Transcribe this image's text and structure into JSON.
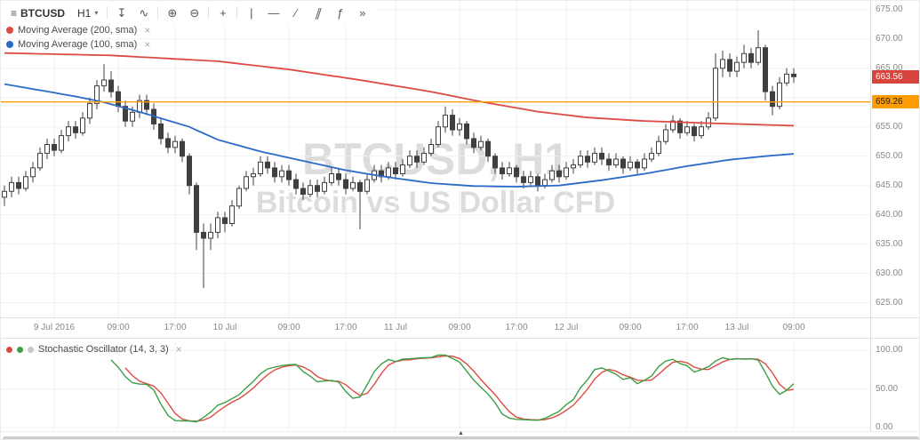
{
  "toolbar": {
    "symbol_icon": "≡",
    "symbol": "BTCUSD",
    "interval": "H1",
    "caret": "▾",
    "tools": [
      {
        "name": "compare",
        "glyph": "↧"
      },
      {
        "name": "indicators",
        "glyph": "∿"
      },
      {
        "name": "zoom-in",
        "glyph": "⊕"
      },
      {
        "name": "zoom-out",
        "glyph": "⊖"
      },
      {
        "name": "crosshair",
        "glyph": "+"
      },
      {
        "name": "vertical-line-tool",
        "glyph": "|"
      },
      {
        "name": "horizontal-line-tool",
        "glyph": "—"
      },
      {
        "name": "trend-line-tool",
        "glyph": "∕"
      },
      {
        "name": "pitchfork-tool",
        "glyph": "∥"
      },
      {
        "name": "function",
        "glyph": "ƒ"
      },
      {
        "name": "more-tools",
        "glyph": "»"
      }
    ]
  },
  "legends": {
    "close_glyph": "×",
    "ma200": {
      "label": "Moving Average (200, sma)",
      "color": "#dd4b43"
    },
    "ma100": {
      "label": "Moving Average (100, sma)",
      "color": "#2a6bc8"
    },
    "stoch": {
      "label": "Stochastic Oscillator (14, 3, 3)",
      "colors": [
        "#dd4b43",
        "#3c9e46",
        "#c9c9c9"
      ]
    }
  },
  "watermark": {
    "line1": "BTCUSD, H1",
    "line2": "Bitcoin vs US Dollar CFD"
  },
  "price_scale": {
    "grid": [
      675,
      670,
      665,
      660,
      655,
      650,
      645,
      640,
      635,
      630,
      625
    ],
    "labels": [
      {
        "v": 675,
        "label": "675.00"
      },
      {
        "v": 670,
        "label": "670.00"
      },
      {
        "v": 665,
        "label": "665.00"
      },
      {
        "v": 655,
        "label": "655.00"
      },
      {
        "v": 650,
        "label": "650.00"
      },
      {
        "v": 645,
        "label": "645.00"
      },
      {
        "v": 640,
        "label": "640.00"
      },
      {
        "v": 635,
        "label": "635.00"
      },
      {
        "v": 630,
        "label": "630.00"
      },
      {
        "v": 625,
        "label": "625.00"
      }
    ],
    "last_price": "663.56",
    "last_price_color": "#d6443c",
    "line_price": "659.26",
    "line_color": "#ff9d00"
  },
  "stoch_scale": [
    {
      "v": 100,
      "label": "100.00"
    },
    {
      "v": 50,
      "label": "50.00"
    },
    {
      "v": 0,
      "label": "0.00"
    }
  ],
  "time_axis": [
    {
      "i": 7,
      "label": "9 Jul 2016"
    },
    {
      "i": 16,
      "label": "09:00"
    },
    {
      "i": 24,
      "label": "17:00"
    },
    {
      "i": 31,
      "label": "10 Jul"
    },
    {
      "i": 40,
      "label": "09:00"
    },
    {
      "i": 48,
      "label": "17:00"
    },
    {
      "i": 55,
      "label": "11 Jul"
    },
    {
      "i": 64,
      "label": "09:00"
    },
    {
      "i": 72,
      "label": "17:00"
    },
    {
      "i": 79,
      "label": "12 Jul"
    },
    {
      "i": 88,
      "label": "09:00"
    },
    {
      "i": 96,
      "label": "17:00"
    },
    {
      "i": 103,
      "label": "13 Jul"
    },
    {
      "i": 111,
      "label": "09:00"
    }
  ],
  "bottom_bar": {
    "collapse_glyph": "▲"
  },
  "chart_data": {
    "type": "candlestick",
    "symbol": "BTCUSD",
    "interval": "H1",
    "title": "Bitcoin vs US Dollar CFD",
    "ylim": [
      622.5,
      676.5
    ],
    "last": 663.56,
    "hline": {
      "value": 659.26,
      "color": "#ff9d00"
    },
    "candles": [
      [
        643.0,
        645.0,
        641.5,
        644.0
      ],
      [
        644.0,
        646.5,
        643.0,
        645.5
      ],
      [
        645.5,
        646.5,
        643.5,
        644.5
      ],
      [
        644.5,
        647.5,
        644.0,
        646.5
      ],
      [
        646.5,
        649.0,
        645.5,
        648.0
      ],
      [
        648.0,
        651.5,
        647.5,
        650.5
      ],
      [
        650.5,
        653.0,
        649.5,
        652.0
      ],
      [
        652.0,
        653.0,
        650.0,
        651.0
      ],
      [
        651.0,
        654.5,
        650.5,
        653.5
      ],
      [
        653.5,
        656.0,
        652.5,
        655.0
      ],
      [
        655.0,
        656.0,
        653.0,
        654.0
      ],
      [
        654.0,
        657.5,
        653.5,
        656.5
      ],
      [
        656.5,
        660.0,
        655.5,
        659.0
      ],
      [
        659.0,
        663.0,
        658.0,
        662.0
      ],
      [
        662.0,
        665.7,
        661.0,
        663.0
      ],
      [
        663.0,
        664.5,
        660.0,
        661.0
      ],
      [
        661.0,
        662.0,
        657.5,
        658.5
      ],
      [
        658.5,
        659.5,
        655.0,
        656.0
      ],
      [
        656.0,
        658.5,
        655.0,
        657.5
      ],
      [
        657.5,
        660.5,
        656.5,
        659.5
      ],
      [
        659.5,
        660.5,
        657.0,
        658.0
      ],
      [
        658.0,
        659.0,
        654.5,
        655.5
      ],
      [
        655.5,
        656.5,
        652.0,
        653.0
      ],
      [
        653.0,
        654.0,
        650.5,
        651.5
      ],
      [
        651.5,
        653.5,
        650.5,
        652.5
      ],
      [
        652.5,
        653.0,
        649.0,
        650.0
      ],
      [
        650.0,
        650.5,
        643.5,
        645.0
      ],
      [
        645.0,
        645.5,
        634.0,
        637.0
      ],
      [
        637.0,
        638.5,
        627.5,
        636.0
      ],
      [
        636.0,
        638.5,
        634.0,
        637.0
      ],
      [
        637.0,
        640.5,
        636.0,
        639.5
      ],
      [
        639.5,
        640.5,
        637.0,
        638.5
      ],
      [
        638.5,
        642.5,
        638.0,
        641.5
      ],
      [
        641.5,
        645.0,
        641.0,
        644.5
      ],
      [
        644.5,
        647.5,
        644.0,
        646.5
      ],
      [
        646.5,
        648.0,
        645.0,
        647.0
      ],
      [
        647.0,
        650.0,
        646.5,
        649.0
      ],
      [
        649.0,
        650.0,
        647.0,
        648.0
      ],
      [
        648.0,
        649.0,
        645.5,
        646.5
      ],
      [
        646.5,
        648.5,
        645.5,
        647.5
      ],
      [
        647.5,
        648.5,
        645.0,
        646.0
      ],
      [
        646.0,
        647.0,
        643.5,
        644.5
      ],
      [
        644.5,
        645.5,
        642.5,
        643.5
      ],
      [
        643.5,
        646.0,
        643.0,
        645.0
      ],
      [
        645.0,
        646.0,
        643.0,
        644.0
      ],
      [
        644.0,
        646.5,
        643.5,
        645.5
      ],
      [
        645.5,
        648.0,
        645.0,
        647.0
      ],
      [
        647.0,
        648.0,
        645.0,
        646.0
      ],
      [
        646.0,
        647.0,
        643.5,
        644.5
      ],
      [
        644.5,
        646.5,
        644.0,
        645.5
      ],
      [
        645.5,
        646.0,
        637.5,
        644.0
      ],
      [
        644.0,
        647.0,
        643.5,
        646.0
      ],
      [
        646.0,
        648.5,
        645.5,
        647.5
      ],
      [
        647.5,
        648.5,
        645.5,
        646.5
      ],
      [
        646.5,
        649.0,
        646.0,
        648.0
      ],
      [
        648.0,
        649.0,
        646.0,
        647.0
      ],
      [
        647.0,
        649.5,
        646.5,
        648.5
      ],
      [
        648.5,
        651.0,
        648.0,
        650.0
      ],
      [
        650.0,
        651.0,
        648.0,
        649.0
      ],
      [
        649.0,
        651.5,
        648.5,
        650.5
      ],
      [
        650.5,
        653.0,
        650.0,
        652.0
      ],
      [
        652.0,
        656.0,
        651.5,
        655.0
      ],
      [
        655.0,
        658.5,
        654.0,
        657.0
      ],
      [
        657.0,
        658.0,
        653.5,
        654.5
      ],
      [
        654.5,
        656.5,
        653.5,
        655.5
      ],
      [
        655.5,
        656.0,
        652.0,
        653.0
      ],
      [
        653.0,
        654.0,
        650.5,
        651.5
      ],
      [
        651.5,
        653.5,
        651.0,
        652.5
      ],
      [
        652.5,
        653.0,
        649.0,
        650.0
      ],
      [
        650.0,
        650.5,
        647.0,
        648.0
      ],
      [
        648.0,
        649.0,
        646.0,
        647.0
      ],
      [
        647.0,
        649.0,
        646.5,
        648.0
      ],
      [
        648.0,
        648.5,
        645.5,
        646.5
      ],
      [
        646.5,
        647.5,
        644.5,
        645.5
      ],
      [
        645.5,
        647.5,
        645.0,
        646.5
      ],
      [
        646.5,
        647.0,
        644.0,
        645.0
      ],
      [
        645.0,
        647.0,
        644.5,
        646.0
      ],
      [
        646.0,
        648.5,
        645.5,
        647.5
      ],
      [
        647.5,
        648.5,
        645.5,
        646.5
      ],
      [
        646.5,
        649.0,
        646.0,
        648.0
      ],
      [
        648.0,
        649.5,
        647.0,
        648.5
      ],
      [
        648.5,
        651.0,
        648.0,
        650.0
      ],
      [
        650.0,
        651.0,
        648.0,
        649.0
      ],
      [
        649.0,
        651.5,
        648.5,
        650.5
      ],
      [
        650.5,
        651.5,
        648.5,
        649.5
      ],
      [
        649.5,
        650.5,
        647.5,
        648.5
      ],
      [
        648.5,
        650.5,
        648.0,
        649.5
      ],
      [
        649.5,
        650.0,
        647.0,
        648.0
      ],
      [
        648.0,
        650.0,
        647.5,
        649.0
      ],
      [
        649.0,
        649.5,
        647.0,
        648.0
      ],
      [
        648.0,
        650.5,
        647.5,
        649.5
      ],
      [
        649.5,
        651.5,
        649.0,
        650.5
      ],
      [
        650.5,
        653.5,
        650.0,
        652.5
      ],
      [
        652.5,
        655.5,
        652.0,
        654.5
      ],
      [
        654.5,
        657.0,
        654.0,
        656.0
      ],
      [
        656.0,
        656.5,
        653.0,
        654.0
      ],
      [
        654.0,
        656.0,
        653.5,
        655.0
      ],
      [
        655.0,
        655.5,
        652.5,
        653.5
      ],
      [
        653.5,
        656.0,
        653.0,
        655.0
      ],
      [
        655.0,
        657.5,
        654.5,
        656.5
      ],
      [
        656.5,
        667.5,
        656.0,
        665.0
      ],
      [
        665.0,
        668.0,
        663.5,
        666.5
      ],
      [
        666.5,
        667.5,
        663.5,
        664.5
      ],
      [
        664.5,
        667.0,
        663.5,
        666.0
      ],
      [
        666.0,
        669.0,
        665.0,
        667.5
      ],
      [
        667.5,
        668.5,
        665.0,
        666.0
      ],
      [
        666.0,
        671.5,
        665.5,
        668.5
      ],
      [
        668.5,
        669.0,
        659.5,
        661.0
      ],
      [
        661.0,
        662.0,
        657.0,
        658.5
      ],
      [
        658.5,
        663.5,
        658.0,
        662.5
      ],
      [
        662.5,
        665.0,
        662.0,
        664.0
      ],
      [
        664.0,
        665.0,
        662.5,
        663.56
      ]
    ],
    "overlays": [
      {
        "name": "MA(200,sma)",
        "color": "#dd4b43",
        "points": [
          [
            0,
            667.6
          ],
          [
            15,
            667.2
          ],
          [
            30,
            666.2
          ],
          [
            40,
            664.8
          ],
          [
            50,
            663.0
          ],
          [
            60,
            661.0
          ],
          [
            67,
            659.3
          ],
          [
            75,
            657.6
          ],
          [
            82,
            656.6
          ],
          [
            90,
            656.0
          ],
          [
            100,
            655.6
          ],
          [
            111,
            655.2
          ]
        ]
      },
      {
        "name": "MA(100,sma)",
        "color": "#2a6bc8",
        "points": [
          [
            0,
            662.3
          ],
          [
            10,
            660.2
          ],
          [
            14,
            659.2
          ],
          [
            20,
            657.2
          ],
          [
            26,
            655.0
          ],
          [
            30,
            652.8
          ],
          [
            36,
            650.8
          ],
          [
            42,
            649.2
          ],
          [
            48,
            647.6
          ],
          [
            54,
            646.4
          ],
          [
            60,
            645.4
          ],
          [
            66,
            644.9
          ],
          [
            72,
            644.8
          ],
          [
            78,
            645.0
          ],
          [
            84,
            645.9
          ],
          [
            90,
            647.0
          ],
          [
            96,
            648.3
          ],
          [
            102,
            649.4
          ],
          [
            107,
            650.0
          ],
          [
            111,
            650.4
          ]
        ]
      }
    ],
    "stochastic": {
      "params": [
        14,
        3,
        3
      ],
      "k_color": "#3c9e46",
      "d_color": "#dd4b43",
      "ylim": [
        0,
        100
      ],
      "grid": [
        100,
        50,
        0
      ]
    }
  }
}
